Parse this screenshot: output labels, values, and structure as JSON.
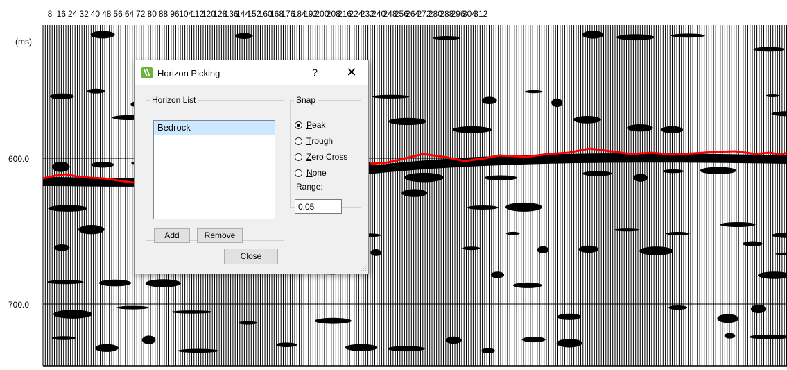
{
  "seismic": {
    "time_unit_label": "(ms)",
    "trace_ticks": [
      "8",
      "16",
      "24",
      "32",
      "40",
      "48",
      "56",
      "64",
      "72",
      "80",
      "88",
      "96",
      "104",
      "112",
      "120",
      "128",
      "136",
      "144",
      "152",
      "160",
      "168",
      "176",
      "184",
      "192",
      "200",
      "208",
      "216",
      "224",
      "232",
      "240",
      "248",
      "256",
      "264",
      "272",
      "280",
      "288",
      "296",
      "304",
      "312"
    ],
    "time_ticks": [
      "600.0",
      "700.0"
    ],
    "pick_color": "#ff0000",
    "trace_color": "#000000"
  },
  "dialog": {
    "title": "Horizon Picking",
    "help_label": "?",
    "close_glyph": "✕",
    "horizon_list": {
      "legend": "Horizon List",
      "items": [
        "Bedrock"
      ],
      "add_label_prefix": "",
      "add_label_mnemonic": "A",
      "add_label_rest": "dd",
      "remove_label_mnemonic": "R",
      "remove_label_rest": "emove"
    },
    "snap": {
      "legend": "Snap",
      "options": [
        {
          "mnemonic": "P",
          "rest": "eak",
          "checked": true
        },
        {
          "mnemonic": "T",
          "rest": "rough",
          "checked": false
        },
        {
          "mnemonic": "Z",
          "rest": "ero Cross",
          "checked": false
        },
        {
          "mnemonic": "N",
          "rest": "one",
          "checked": false
        }
      ],
      "range_label": "Range:",
      "range_value": "0.05"
    },
    "close_mnemonic": "C",
    "close_rest": "lose",
    "accent_color": "#6cb33f"
  }
}
